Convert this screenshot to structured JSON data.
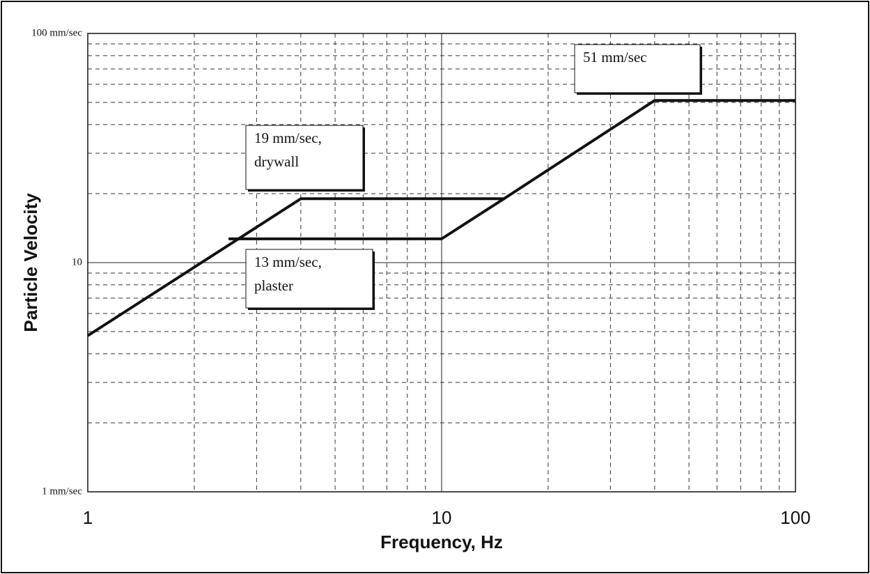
{
  "chart_data": {
    "type": "line",
    "xlabel": "Frequency, Hz",
    "ylabel": "Particle Velocity",
    "xscale": "log",
    "yscale": "log",
    "grid": true,
    "xlim": [
      1,
      100
    ],
    "ylim": [
      1,
      100
    ],
    "xticks": [
      1,
      10,
      100
    ],
    "yticks": [
      {
        "value": 1,
        "label": "1 mm/sec"
      },
      10,
      {
        "value": 100,
        "label": "100 mm/sec"
      }
    ],
    "xminorticks": [
      2,
      3,
      4,
      5,
      6,
      7,
      8,
      9,
      20,
      30,
      40,
      50,
      60,
      70,
      80,
      90
    ],
    "yminorticks": [
      2,
      3,
      4,
      5,
      6,
      7,
      8,
      9,
      20,
      30,
      40,
      50,
      60,
      70,
      80,
      90
    ],
    "series": [
      {
        "color": "#111111",
        "x": [
          1,
          4,
          15,
          40,
          100
        ],
        "values": [
          4.8,
          19,
          19,
          51,
          51
        ]
      },
      {
        "color": "#111111",
        "x": [
          2.5,
          10,
          15
        ],
        "values": [
          12.7,
          12.7,
          19
        ]
      }
    ],
    "annotations": [
      {
        "text": [
          "19 mm/sec,",
          "drywall"
        ]
      },
      {
        "text": [
          "13 mm/sec,",
          "plaster"
        ]
      },
      {
        "text": [
          "51 mm/sec"
        ]
      }
    ]
  }
}
